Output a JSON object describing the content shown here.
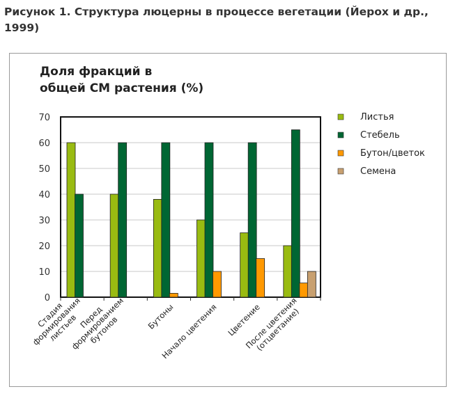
{
  "caption": "Рисунок 1. Структура люцерны в процессе вегетации (Йерох и др., 1999)",
  "chart_data": {
    "type": "bar",
    "title": [
      "Доля фракций в",
      "общей СМ растения (%)"
    ],
    "xlabel": "",
    "ylabel": "",
    "ylim": [
      0,
      70
    ],
    "yticks": [
      0,
      10,
      20,
      30,
      40,
      50,
      60,
      70
    ],
    "grid": true,
    "legend_position": "right",
    "categories": [
      [
        "Стадия",
        "формирования",
        "листьев"
      ],
      [
        "Перед",
        "формированием",
        "бутонов"
      ],
      [
        "Бутоны"
      ],
      [
        "Начало цветения"
      ],
      [
        "Цветение"
      ],
      [
        "После цветения",
        "(отцветание)"
      ]
    ],
    "series": [
      {
        "name": "Листья",
        "color": "#99bb11",
        "values": [
          60,
          40,
          38,
          30,
          25,
          20
        ]
      },
      {
        "name": "Стебель",
        "color": "#006633",
        "values": [
          40,
          60,
          60,
          60,
          60,
          65
        ]
      },
      {
        "name": "Бутон/цветок",
        "color": "#ff9900",
        "values": [
          0,
          0,
          1.5,
          10,
          15,
          5.5
        ]
      },
      {
        "name": "Семена",
        "color": "#c8a070",
        "values": [
          0,
          0,
          0,
          0,
          0,
          10
        ]
      }
    ]
  }
}
